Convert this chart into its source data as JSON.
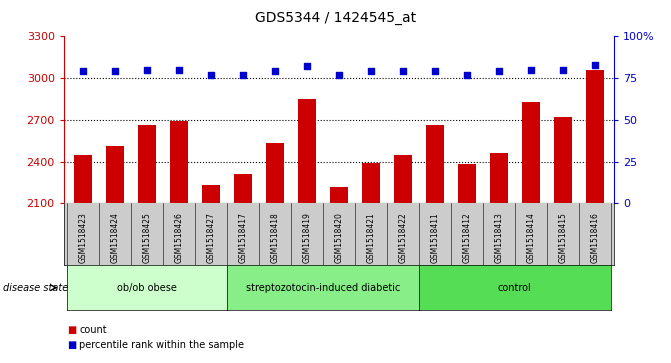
{
  "title": "GDS5344 / 1424545_at",
  "categories": [
    "GSM1518423",
    "GSM1518424",
    "GSM1518425",
    "GSM1518426",
    "GSM1518427",
    "GSM1518417",
    "GSM1518418",
    "GSM1518419",
    "GSM1518420",
    "GSM1518421",
    "GSM1518422",
    "GSM1518411",
    "GSM1518412",
    "GSM1518413",
    "GSM1518414",
    "GSM1518415",
    "GSM1518416"
  ],
  "counts": [
    2450,
    2510,
    2660,
    2690,
    2230,
    2310,
    2530,
    2850,
    2220,
    2390,
    2450,
    2660,
    2380,
    2460,
    2830,
    2720,
    3060
  ],
  "percentile_ranks": [
    79,
    79,
    80,
    80,
    77,
    77,
    79,
    82,
    77,
    79,
    79,
    79,
    77,
    79,
    80,
    80,
    83
  ],
  "bar_color": "#cc0000",
  "dot_color": "#0000cc",
  "groups": [
    {
      "label": "ob/ob obese",
      "start": 0,
      "end": 5,
      "color": "#ccffcc"
    },
    {
      "label": "streptozotocin-induced diabetic",
      "start": 5,
      "end": 11,
      "color": "#88ee88"
    },
    {
      "label": "control",
      "start": 11,
      "end": 17,
      "color": "#55dd55"
    }
  ],
  "ylim_left": [
    2100,
    3300
  ],
  "ylim_right": [
    0,
    100
  ],
  "yticks_left": [
    2100,
    2400,
    2700,
    3000,
    3300
  ],
  "yticks_right": [
    0,
    25,
    50,
    75,
    100
  ],
  "grid_values": [
    2400,
    2700,
    3000
  ],
  "disease_state_label": "disease state",
  "legend_count_label": "count",
  "legend_percentile_label": "percentile rank within the sample",
  "background_color": "#ffffff",
  "plot_bg_color": "#ffffff",
  "tick_label_bg": "#cccccc",
  "xlabel_color": "#cc0000",
  "ylabel_right_color": "#0000cc"
}
